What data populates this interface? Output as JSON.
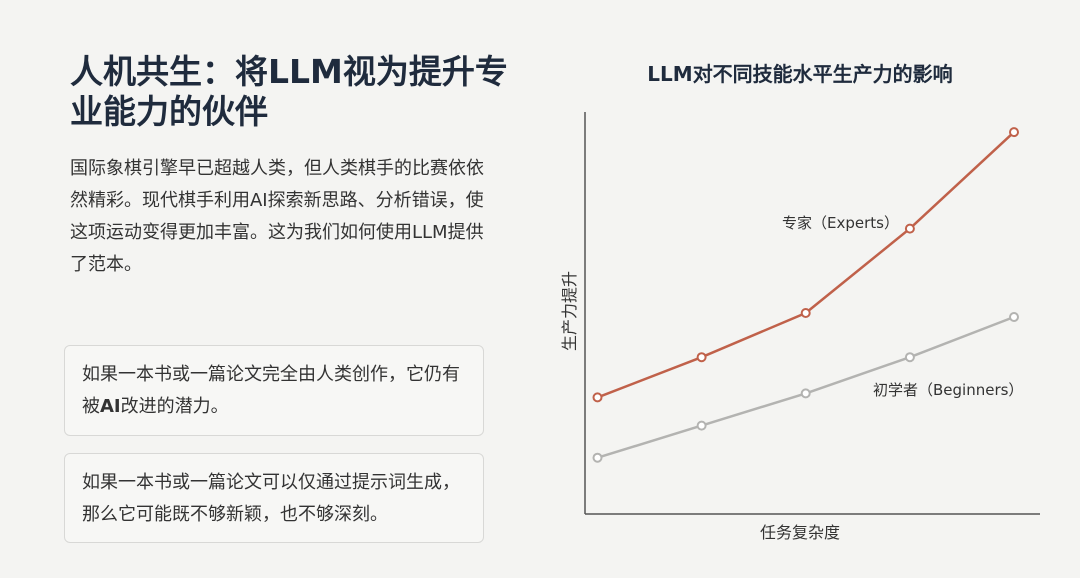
{
  "page": {
    "title": "人机共生：将LLM视为提升专业能力的伙伴",
    "intro": "国际象棋引擎早已超越人类，但人类棋手的比赛依依然精彩。现代棋手利用AI探索新思路、分析错误，使这项运动变得更加丰富。这为我们如何使用LLM提供了范本。",
    "quotes": [
      {
        "before": "如果一本书或一篇论文完全由人类创作，它仍有被",
        "highlight": "AI",
        "after": "改进的潜力。"
      },
      {
        "text": "如果一本书或一篇论文可以仅通过提示词生成，那么它可能既不够新颖，也不够深刻。"
      }
    ]
  },
  "colors": {
    "experts": "#c0614a",
    "beginners": "#b3b3b1",
    "axis": "#555555"
  },
  "chart_data": {
    "type": "line",
    "title": "LLM对不同技能水平生产力的影响",
    "xlabel": "任务复杂度",
    "ylabel": "生产力提升",
    "x": [
      1,
      2,
      3,
      4,
      5
    ],
    "xlim": [
      0.88,
      5.25
    ],
    "ylim": [
      0,
      10
    ],
    "grid": false,
    "legend": "inline labels",
    "series": [
      {
        "name": "专家（Experts）",
        "values": [
          2.9,
          3.9,
          5.0,
          7.1,
          9.5
        ]
      },
      {
        "name": "初学者（Beginners）",
        "values": [
          1.4,
          2.2,
          3.0,
          3.9,
          4.9
        ]
      }
    ]
  }
}
